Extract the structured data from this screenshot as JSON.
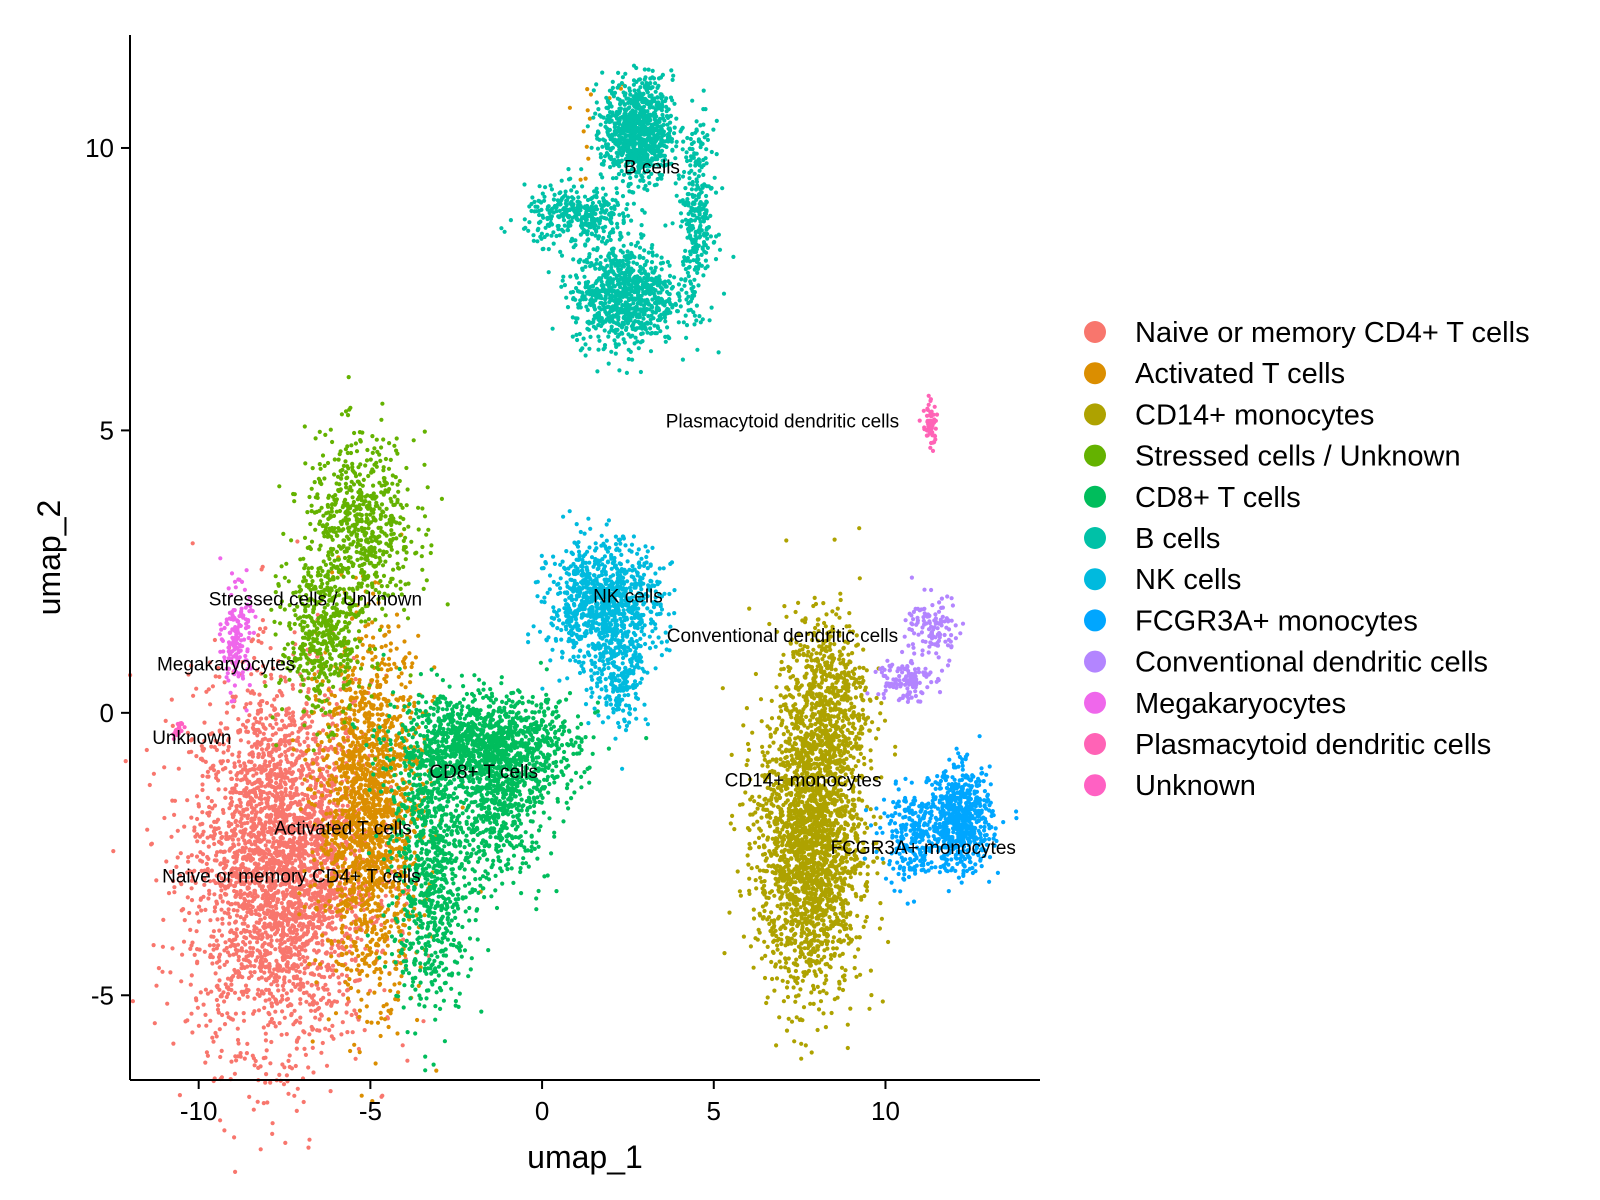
{
  "chart_data": {
    "type": "scatter",
    "title": "",
    "xlabel": "umap_1",
    "ylabel": "umap_2",
    "xlim": [
      -12,
      14.5
    ],
    "ylim": [
      -6.5,
      12
    ],
    "xticks": [
      -10,
      -5,
      0,
      5,
      10
    ],
    "xtick_labels": [
      "-10",
      "-5",
      "0",
      "5",
      "10"
    ],
    "yticks": [
      -5,
      0,
      5,
      10
    ],
    "ytick_labels": [
      "-5",
      "0",
      "5",
      "10"
    ],
    "grid": false,
    "legend_position": "right",
    "series": [
      {
        "name": "Naive or memory CD4+ T cells",
        "color": "#F8766D",
        "label_pos": [
          -7.3,
          -3.0
        ],
        "clusters": [
          {
            "cx": -7.6,
            "cy": -2.7,
            "sx": 1.3,
            "sy": 1.6,
            "n": 3200
          }
        ]
      },
      {
        "name": "Activated T cells",
        "color": "#DB8E00",
        "label_pos": [
          -5.8,
          -2.15
        ],
        "clusters": [
          {
            "cx": -5.0,
            "cy": -1.8,
            "sx": 0.75,
            "sy": 1.5,
            "n": 1700
          },
          {
            "cx": 1.9,
            "cy": 10.1,
            "sx": 0.6,
            "sy": 0.6,
            "n": 20
          }
        ]
      },
      {
        "name": "CD14+ monocytes",
        "color": "#AEA200",
        "label_pos": [
          7.6,
          -1.3
        ],
        "clusters": [
          {
            "cx": 7.8,
            "cy": -2.3,
            "sx": 0.75,
            "sy": 1.3,
            "n": 2200
          },
          {
            "cx": 8.3,
            "cy": 0.2,
            "sx": 0.6,
            "sy": 0.8,
            "n": 600
          }
        ]
      },
      {
        "name": "Stressed cells / Unknown",
        "color": "#64B200",
        "label_pos": [
          -6.6,
          1.9
        ],
        "clusters": [
          {
            "cx": -5.3,
            "cy": 3.3,
            "sx": 0.8,
            "sy": 0.8,
            "n": 650
          },
          {
            "cx": -6.4,
            "cy": 1.3,
            "sx": 0.6,
            "sy": 0.7,
            "n": 450
          }
        ]
      },
      {
        "name": "CD8+ T cells",
        "color": "#00BD5C",
        "label_pos": [
          -1.7,
          -1.15
        ],
        "clusters": [
          {
            "cx": -1.6,
            "cy": -0.6,
            "sx": 1.3,
            "sy": 0.45,
            "n": 1300
          },
          {
            "cx": -3.2,
            "cy": -2.8,
            "sx": 0.6,
            "sy": 1.2,
            "n": 800
          },
          {
            "cx": -1.2,
            "cy": -1.8,
            "sx": 0.7,
            "sy": 0.6,
            "n": 400
          }
        ]
      },
      {
        "name": "B cells",
        "color": "#00C1A7",
        "label_pos": [
          3.2,
          9.55
        ],
        "clusters": [
          {
            "cx": 2.8,
            "cy": 10.3,
            "sx": 0.5,
            "sy": 0.45,
            "n": 900
          },
          {
            "cx": 2.4,
            "cy": 7.4,
            "sx": 0.75,
            "sy": 0.45,
            "n": 900
          },
          {
            "cx": 1.1,
            "cy": 8.8,
            "sx": 0.8,
            "sy": 0.25,
            "n": 350
          },
          {
            "cx": 4.5,
            "cy": 8.8,
            "sx": 0.25,
            "sy": 0.8,
            "n": 300
          }
        ]
      },
      {
        "name": "NK cells",
        "color": "#00BADE",
        "label_pos": [
          2.5,
          1.95
        ],
        "clusters": [
          {
            "cx": 1.8,
            "cy": 1.9,
            "sx": 0.8,
            "sy": 0.55,
            "n": 1000
          },
          {
            "cx": 2.3,
            "cy": 0.7,
            "sx": 0.4,
            "sy": 0.5,
            "n": 200
          }
        ]
      },
      {
        "name": "FCGR3A+ monocytes",
        "color": "#00A6FF",
        "label_pos": [
          11.1,
          -2.5
        ],
        "clusters": [
          {
            "cx": 12.2,
            "cy": -1.9,
            "sx": 0.45,
            "sy": 0.45,
            "n": 650
          },
          {
            "cx": 10.8,
            "cy": -2.2,
            "sx": 0.45,
            "sy": 0.4,
            "n": 250
          }
        ]
      },
      {
        "name": "Conventional dendritic cells",
        "color": "#B385FF",
        "label_pos": [
          7.0,
          1.25
        ],
        "clusters": [
          {
            "cx": 10.5,
            "cy": 0.6,
            "sx": 0.4,
            "sy": 0.2,
            "n": 120
          },
          {
            "cx": 11.4,
            "cy": 1.5,
            "sx": 0.4,
            "sy": 0.3,
            "n": 120
          }
        ]
      },
      {
        "name": "Megakaryocytes",
        "color": "#EF67EB",
        "label_pos": [
          -9.2,
          0.75
        ],
        "clusters": [
          {
            "cx": -8.9,
            "cy": 1.3,
            "sx": 0.2,
            "sy": 0.45,
            "n": 160
          }
        ]
      },
      {
        "name": "Plasmacytoid dendritic cells",
        "color": "#FF63B6",
        "label_pos": [
          7.0,
          5.05
        ],
        "clusters": [
          {
            "cx": 11.3,
            "cy": 5.1,
            "sx": 0.1,
            "sy": 0.2,
            "n": 60
          }
        ]
      },
      {
        "name": "Unknown",
        "color": "#FF61C3",
        "label_pos": [
          -10.2,
          -0.55
        ],
        "clusters": [
          {
            "cx": -10.6,
            "cy": -0.3,
            "sx": 0.08,
            "sy": 0.1,
            "n": 20
          }
        ]
      }
    ]
  }
}
